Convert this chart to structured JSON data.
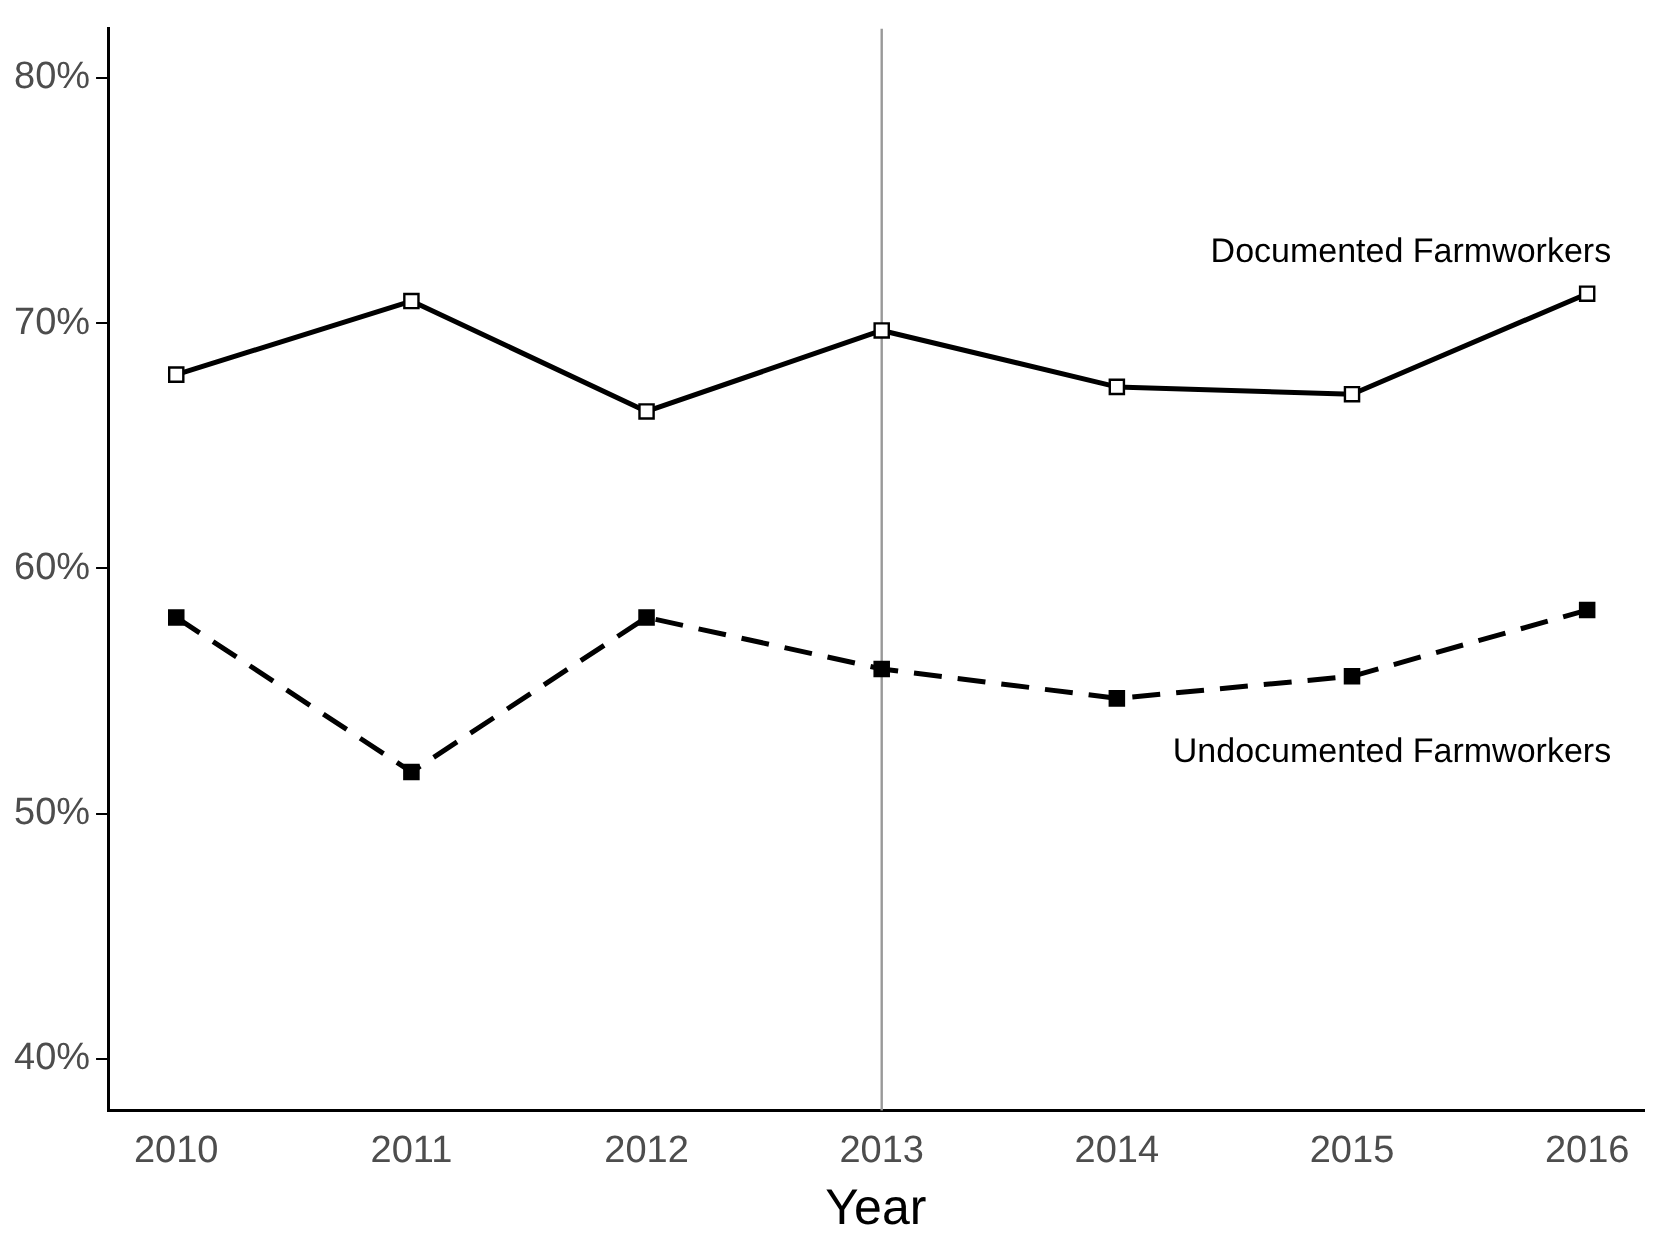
{
  "chart_data": {
    "type": "line",
    "xlabel": "Year",
    "x": [
      2010,
      2011,
      2012,
      2013,
      2014,
      2015,
      2016
    ],
    "xlim": [
      2009.71,
      2016.24
    ],
    "xticks": [
      2010,
      2011,
      2012,
      2013,
      2014,
      2015,
      2016
    ],
    "ylim": [
      37.9,
      82
    ],
    "yticks": [
      {
        "value": 40,
        "label": "40%"
      },
      {
        "value": 50,
        "label": "50%"
      },
      {
        "value": 60,
        "label": "60%"
      },
      {
        "value": 70,
        "label": "70%"
      },
      {
        "value": 80,
        "label": "80%"
      }
    ],
    "grid": false,
    "legend": false,
    "ref_lines": [
      {
        "axis": "x",
        "value": 2013,
        "color": "#999999"
      }
    ],
    "series": [
      {
        "name": "Documented Farmworkers",
        "color": "#000000",
        "line_style": "solid",
        "marker": "square",
        "values": [
          67.9,
          70.9,
          66.4,
          69.7,
          67.4,
          67.1,
          71.2
        ]
      },
      {
        "name": "Undocumented Farmworkers",
        "color": "#000000",
        "line_style": "dashed",
        "marker": "square",
        "values": [
          58.0,
          51.7,
          58.0,
          55.9,
          54.7,
          55.6,
          58.3
        ]
      }
    ]
  }
}
